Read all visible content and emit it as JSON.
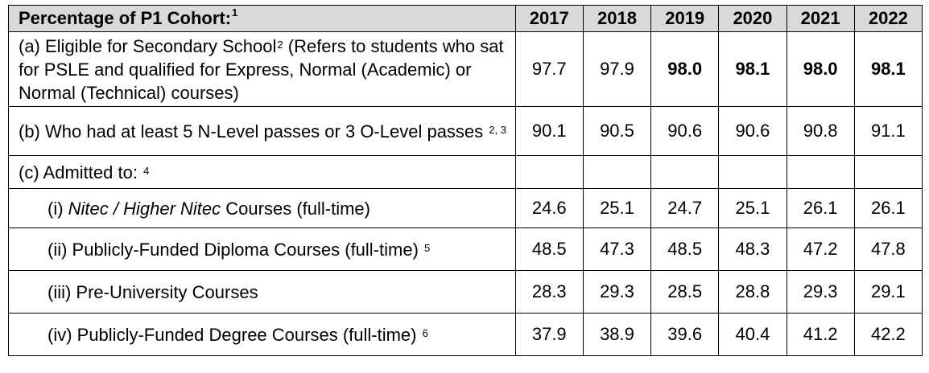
{
  "header": {
    "label": "Percentage of P1 Cohort:",
    "label_note": "1",
    "years": [
      "2017",
      "2018",
      "2019",
      "2020",
      "2021",
      "2022"
    ]
  },
  "rows": [
    {
      "label": "(a) Eligible for Secondary School",
      "note": "2",
      "label_tail": "(Refers to students who sat for PSLE and qualified for Express, Normal (Academic) or Normal (Technical) courses)",
      "values": [
        "97.7",
        "97.9",
        "98.0",
        "98.1",
        "98.0",
        "98.1"
      ],
      "bold": [
        false,
        false,
        true,
        true,
        true,
        true
      ]
    },
    {
      "label": "(b) Who had at least 5 N-Level passes or 3 O-Level passes",
      "note": "2, 3",
      "values": [
        "90.1",
        "90.5",
        "90.6",
        "90.6",
        "90.8",
        "91.1"
      ]
    },
    {
      "label": "(c) Admitted to:",
      "note": "4",
      "values": [
        "",
        "",
        "",
        "",
        "",
        ""
      ]
    },
    {
      "label_prefix": "(i) ",
      "label_italic": "Nitec / Higher Nitec",
      "label_suffix": " Courses (full-time)",
      "values": [
        "24.6",
        "25.1",
        "24.7",
        "25.1",
        "26.1",
        "26.1"
      ]
    },
    {
      "label": "(ii) Publicly-Funded Diploma Courses (full-time)",
      "note": "5",
      "values": [
        "48.5",
        "47.3",
        "48.5",
        "48.3",
        "47.2",
        "47.8"
      ]
    },
    {
      "label": "(iii) Pre-University Courses",
      "values": [
        "28.3",
        "29.3",
        "28.5",
        "28.8",
        "29.3",
        "29.1"
      ]
    },
    {
      "label": "(iv) Publicly-Funded Degree Courses (full-time)",
      "note": "6",
      "values": [
        "37.9",
        "38.9",
        "39.6",
        "40.4",
        "41.2",
        "42.2"
      ]
    }
  ]
}
